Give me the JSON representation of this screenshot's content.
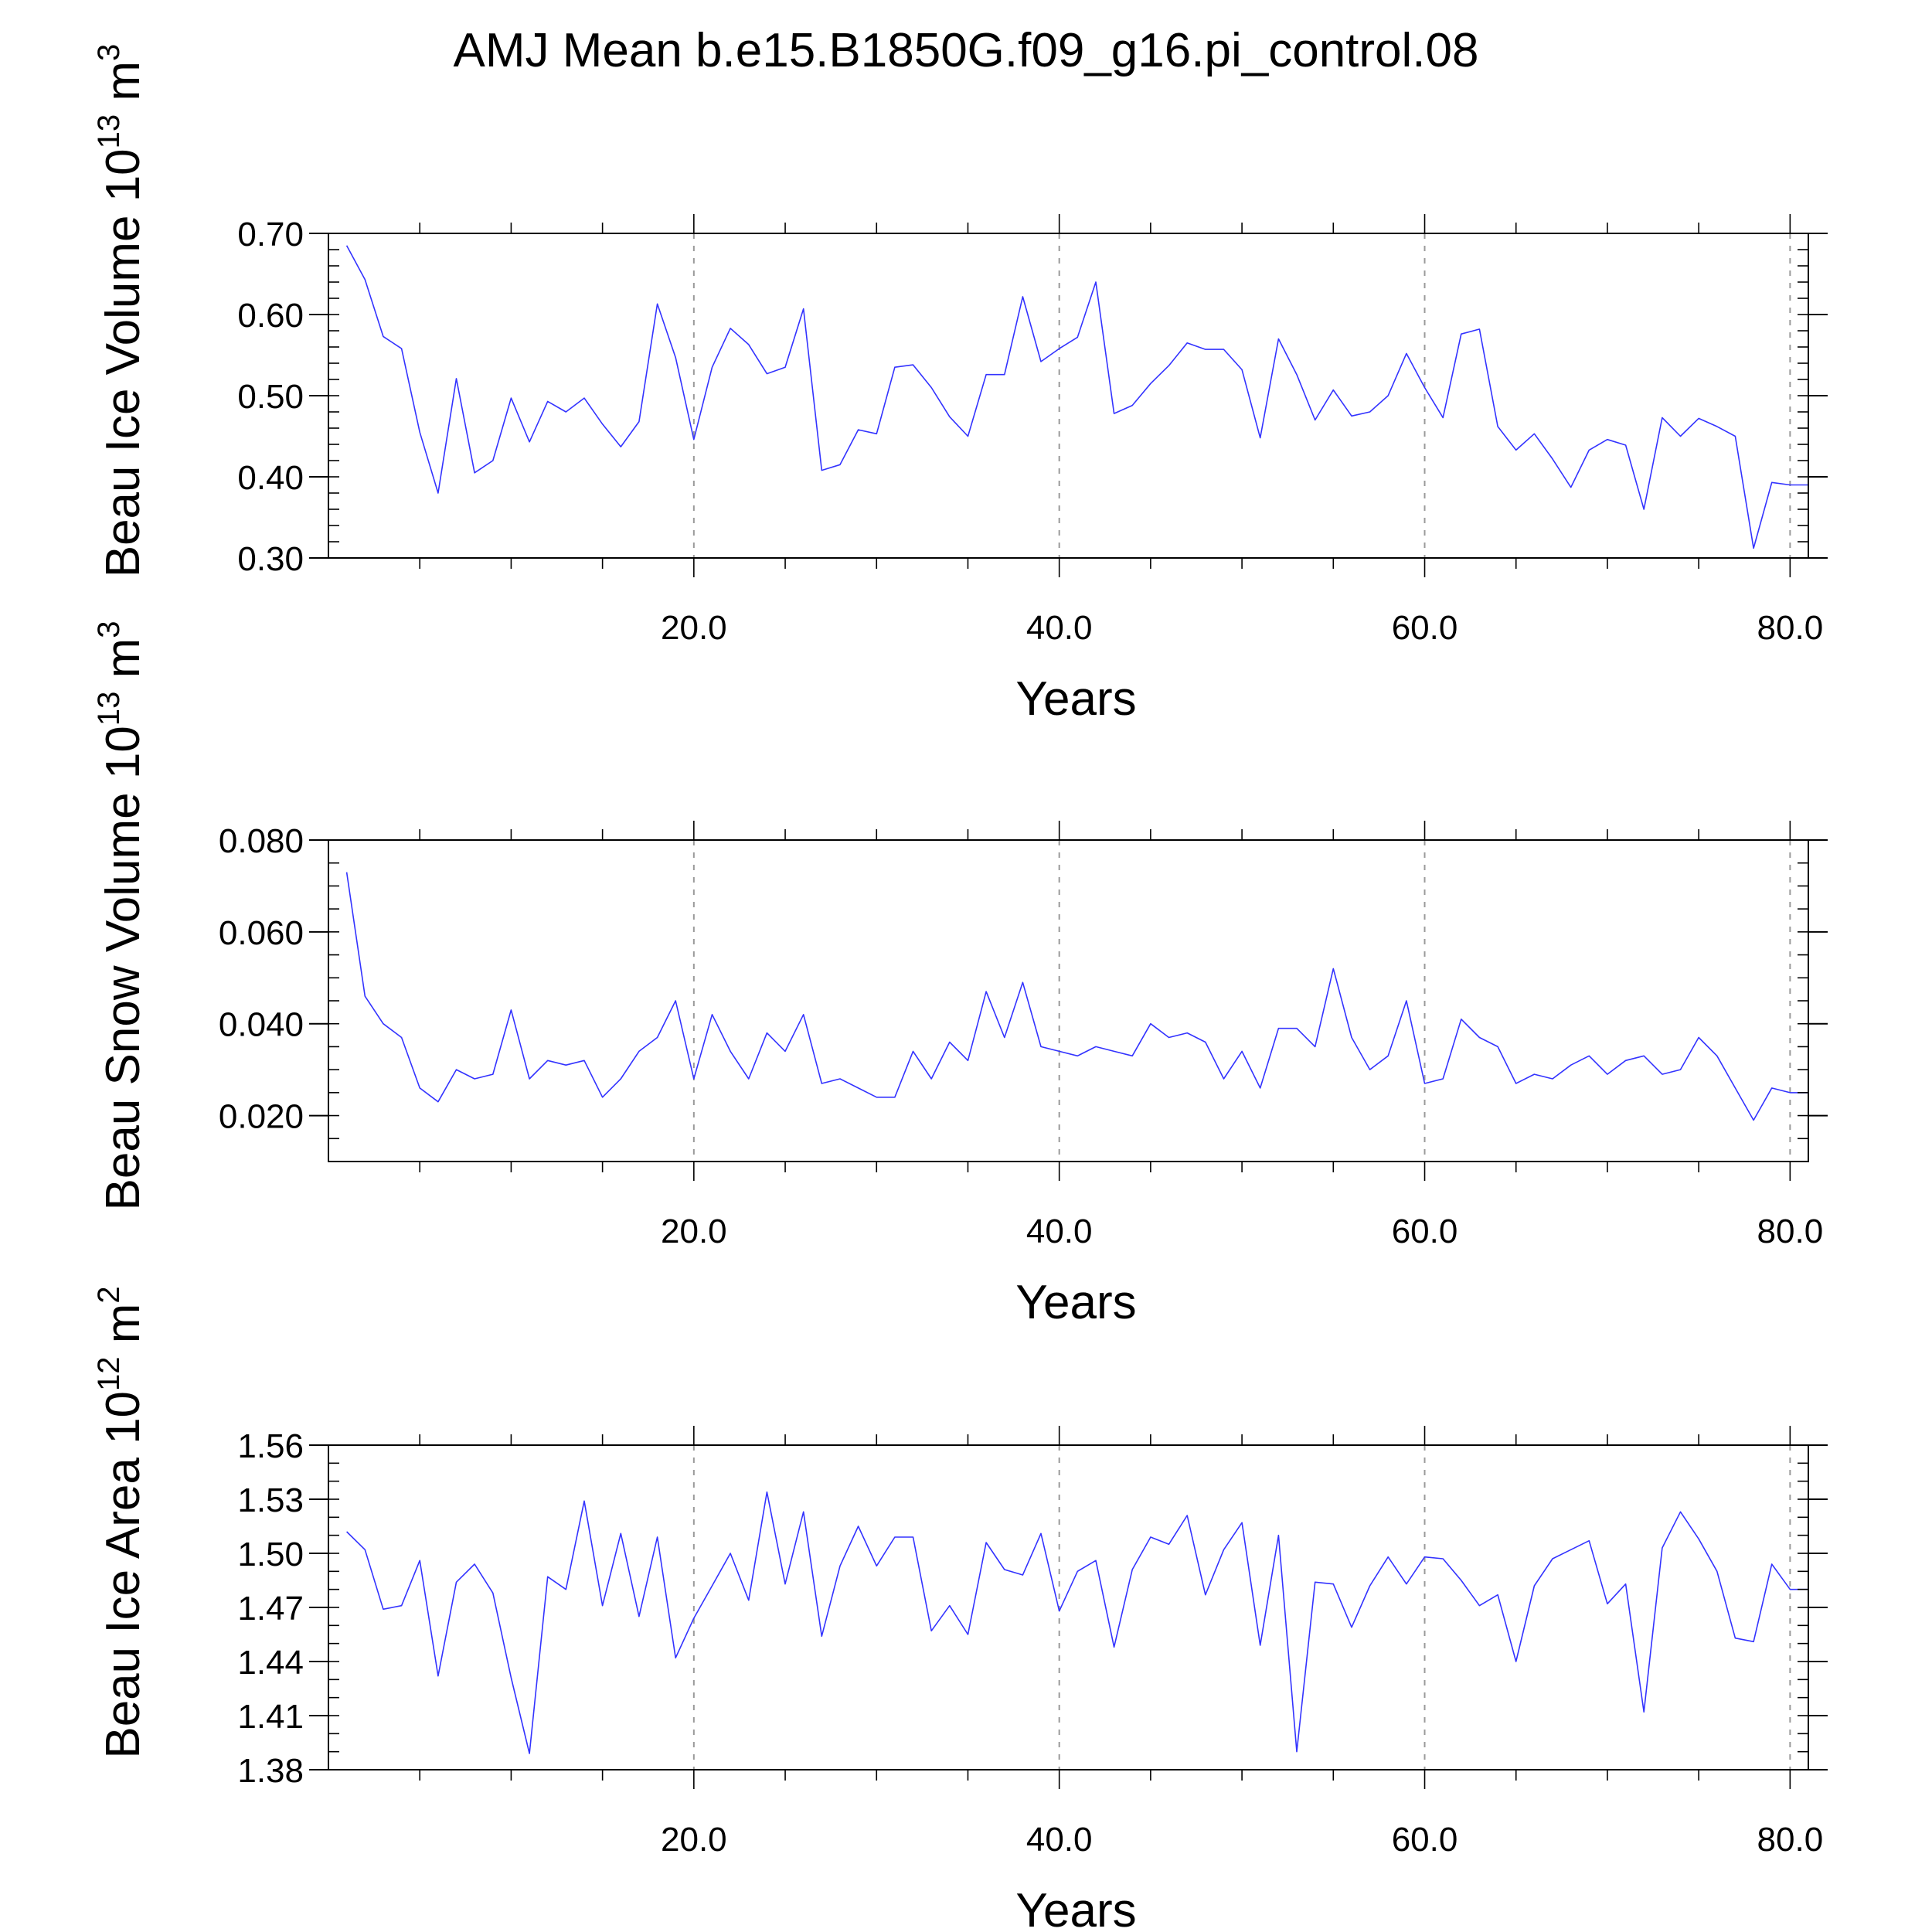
{
  "figure": {
    "title": "AMJ Mean b.e15.B1850G.f09_g16.pi_control.08"
  },
  "chart_data": [
    {
      "type": "line",
      "ylabel_main": "Beau Ice Volume 10",
      "ylabel_exp": "13",
      "ylabel_unit": " m",
      "ylabel_unit_exp": "3",
      "xlabel": "Years",
      "xlim": [
        0,
        81
      ],
      "ylim": [
        0.3,
        0.7
      ],
      "xticks": [
        20,
        40,
        60,
        80
      ],
      "xtick_labels": [
        "20.0",
        "40.0",
        "60.0",
        "80.0"
      ],
      "yticks": [
        0.3,
        0.4,
        0.5,
        0.6,
        0.7
      ],
      "ytick_labels": [
        "0.30",
        "0.40",
        "0.50",
        "0.60",
        "0.70"
      ],
      "y_minor_step": 0.02,
      "grid": "dashed vertical at major x ticks",
      "line_color": "#3333ff",
      "series": [
        {
          "x": [
            1,
            2,
            3,
            4,
            5,
            6,
            7,
            8,
            9,
            10,
            11,
            12,
            13,
            14,
            15,
            16,
            17,
            18,
            19,
            20,
            21,
            22,
            23,
            24,
            25,
            26,
            27,
            28,
            29,
            30,
            31,
            32,
            33,
            34,
            35,
            36,
            37,
            38,
            39,
            40,
            41,
            42,
            43,
            44,
            45,
            46,
            47,
            48,
            49,
            50,
            51,
            52,
            53,
            54,
            55,
            56,
            57,
            58,
            59,
            60,
            61,
            62,
            63,
            64,
            65,
            66,
            67,
            68,
            69,
            70,
            71,
            72,
            73,
            74,
            75,
            76,
            77,
            78,
            79,
            80,
            81
          ],
          "values": [
            0.685,
            0.643,
            0.573,
            0.558,
            0.455,
            0.38,
            0.521,
            0.405,
            0.42,
            0.497,
            0.443,
            0.493,
            0.48,
            0.497,
            0.465,
            0.437,
            0.468,
            0.613,
            0.547,
            0.446,
            0.535,
            0.583,
            0.563,
            0.527,
            0.535,
            0.607,
            0.408,
            0.415,
            0.458,
            0.453,
            0.535,
            0.538,
            0.51,
            0.474,
            0.45,
            0.526,
            0.526,
            0.622,
            0.542,
            0.558,
            0.572,
            0.64,
            0.478,
            0.488,
            0.515,
            0.537,
            0.565,
            0.557,
            0.557,
            0.532,
            0.448,
            0.57,
            0.526,
            0.47,
            0.507,
            0.475,
            0.48,
            0.5,
            0.552,
            0.51,
            0.473,
            0.576,
            0.582,
            0.462,
            0.433,
            0.453,
            0.422,
            0.387,
            0.433,
            0.446,
            0.439,
            0.36,
            0.473,
            0.45,
            0.472,
            0.462,
            0.45,
            0.312,
            0.393,
            0.39,
            0.39
          ]
        }
      ]
    },
    {
      "type": "line",
      "ylabel_main": "Beau Snow Volume 10",
      "ylabel_exp": "13",
      "ylabel_unit": " m",
      "ylabel_unit_exp": "3",
      "xlabel": "Years",
      "xlim": [
        0,
        81
      ],
      "ylim": [
        0.01,
        0.08
      ],
      "xticks": [
        20,
        40,
        60,
        80
      ],
      "xtick_labels": [
        "20.0",
        "40.0",
        "60.0",
        "80.0"
      ],
      "yticks": [
        0.02,
        0.04,
        0.06,
        0.08
      ],
      "ytick_labels": [
        "0.020",
        "0.040",
        "0.060",
        "0.080"
      ],
      "y_minor_step": 0.005,
      "grid": "dashed vertical at major x ticks",
      "line_color": "#3333ff",
      "series": [
        {
          "x": [
            1,
            2,
            3,
            4,
            5,
            6,
            7,
            8,
            9,
            10,
            11,
            12,
            13,
            14,
            15,
            16,
            17,
            18,
            19,
            20,
            21,
            22,
            23,
            24,
            25,
            26,
            27,
            28,
            29,
            30,
            31,
            32,
            33,
            34,
            35,
            36,
            37,
            38,
            39,
            40,
            41,
            42,
            43,
            44,
            45,
            46,
            47,
            48,
            49,
            50,
            51,
            52,
            53,
            54,
            55,
            56,
            57,
            58,
            59,
            60,
            61,
            62,
            63,
            64,
            65,
            66,
            67,
            68,
            69,
            70,
            71,
            72,
            73,
            74,
            75,
            76,
            77,
            78,
            79,
            80,
            81
          ],
          "values": [
            0.073,
            0.046,
            0.04,
            0.037,
            0.026,
            0.023,
            0.03,
            0.028,
            0.029,
            0.043,
            0.028,
            0.032,
            0.031,
            0.032,
            0.024,
            0.028,
            0.034,
            0.037,
            0.045,
            0.028,
            0.042,
            0.034,
            0.028,
            0.038,
            0.034,
            0.042,
            0.027,
            0.028,
            0.026,
            0.024,
            0.024,
            0.034,
            0.028,
            0.036,
            0.032,
            0.047,
            0.037,
            0.049,
            0.035,
            0.034,
            0.033,
            0.035,
            0.034,
            0.033,
            0.04,
            0.037,
            0.038,
            0.036,
            0.028,
            0.034,
            0.026,
            0.039,
            0.039,
            0.035,
            0.052,
            0.037,
            0.03,
            0.033,
            0.045,
            0.027,
            0.028,
            0.041,
            0.037,
            0.035,
            0.027,
            0.029,
            0.028,
            0.031,
            0.033,
            0.029,
            0.032,
            0.033,
            0.029,
            0.03,
            0.037,
            0.033,
            0.026,
            0.019,
            0.026,
            0.025,
            0.025
          ]
        }
      ]
    },
    {
      "type": "line",
      "ylabel_main": "Beau Ice Area 10",
      "ylabel_exp": "12",
      "ylabel_unit": " m",
      "ylabel_unit_exp": "2",
      "xlabel": "Years",
      "xlim": [
        0,
        81
      ],
      "ylim": [
        1.38,
        1.56
      ],
      "xticks": [
        20,
        40,
        60,
        80
      ],
      "xtick_labels": [
        "20.0",
        "40.0",
        "60.0",
        "80.0"
      ],
      "yticks": [
        1.38,
        1.41,
        1.44,
        1.47,
        1.5,
        1.53,
        1.56
      ],
      "ytick_labels": [
        "1.38",
        "1.41",
        "1.44",
        "1.47",
        "1.50",
        "1.53",
        "1.56"
      ],
      "y_minor_step": 0.01,
      "grid": "dashed vertical at major x ticks",
      "line_color": "#3333ff",
      "series": [
        {
          "x": [
            1,
            2,
            3,
            4,
            5,
            6,
            7,
            8,
            9,
            10,
            11,
            12,
            13,
            14,
            15,
            16,
            17,
            18,
            19,
            20,
            21,
            22,
            23,
            24,
            25,
            26,
            27,
            28,
            29,
            30,
            31,
            32,
            33,
            34,
            35,
            36,
            37,
            38,
            39,
            40,
            41,
            42,
            43,
            44,
            45,
            46,
            47,
            48,
            49,
            50,
            51,
            52,
            53,
            54,
            55,
            56,
            57,
            58,
            59,
            60,
            61,
            62,
            63,
            64,
            65,
            66,
            67,
            68,
            69,
            70,
            71,
            72,
            73,
            74,
            75,
            76,
            77,
            78,
            79,
            80,
            81
          ],
          "values": [
            1.512,
            1.502,
            1.469,
            1.471,
            1.496,
            1.432,
            1.484,
            1.494,
            1.478,
            1.431,
            1.389,
            1.487,
            1.48,
            1.529,
            1.471,
            1.511,
            1.465,
            1.509,
            1.442,
            1.464,
            1.482,
            1.5,
            1.474,
            1.534,
            1.483,
            1.523,
            1.454,
            1.493,
            1.515,
            1.493,
            1.509,
            1.509,
            1.457,
            1.471,
            1.455,
            1.506,
            1.491,
            1.488,
            1.511,
            1.468,
            1.49,
            1.496,
            1.448,
            1.491,
            1.509,
            1.505,
            1.521,
            1.477,
            1.502,
            1.517,
            1.449,
            1.51,
            1.39,
            1.484,
            1.483,
            1.459,
            1.482,
            1.498,
            1.483,
            1.498,
            1.497,
            1.485,
            1.471,
            1.477,
            1.44,
            1.482,
            1.497,
            1.502,
            1.507,
            1.472,
            1.483,
            1.412,
            1.503,
            1.523,
            1.508,
            1.49,
            1.453,
            1.451,
            1.494,
            1.48,
            1.48
          ]
        }
      ]
    }
  ]
}
